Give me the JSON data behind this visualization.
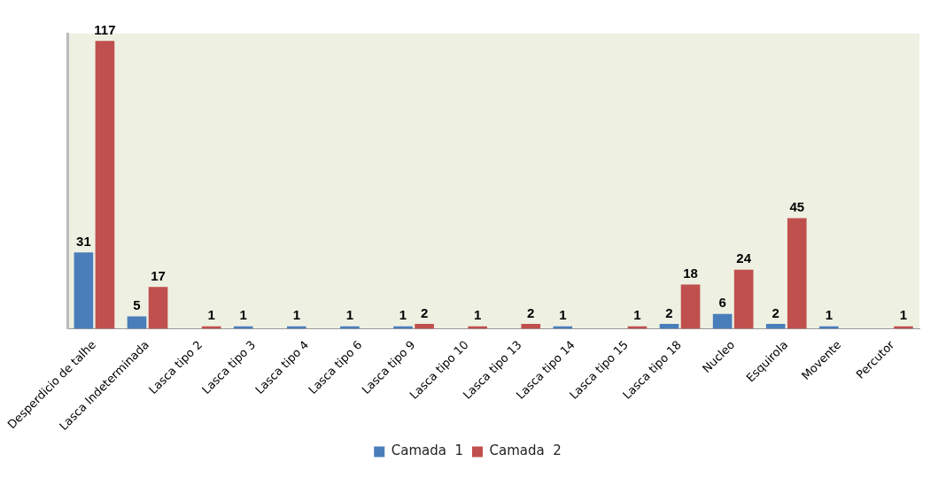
{
  "chart_data": {
    "type": "bar",
    "categories": [
      "Desperdicio de talhe",
      "Lasca Indeterminada",
      "Lasca tipo 2",
      "Lasca tipo 3",
      "Lasca tipo 4",
      "Lasca tipo 6",
      "Lasca tipo 9",
      "Lasca tipo 10",
      "Lasca tipo 13",
      "Lasca tipo 14",
      "Lasca tipo 15",
      "Lasca tipo 18",
      "Nucleo",
      "Esquirola",
      "Movente",
      "Percutor"
    ],
    "series": [
      {
        "name": "Camada  1",
        "color": "#4a7ebb",
        "values": [
          31,
          5,
          null,
          1,
          1,
          1,
          1,
          null,
          null,
          1,
          null,
          2,
          6,
          2,
          1,
          null
        ]
      },
      {
        "name": "Camada  2",
        "color": "#c0504d",
        "values": [
          117,
          17,
          1,
          null,
          null,
          null,
          2,
          1,
          2,
          null,
          1,
          18,
          24,
          45,
          null,
          1
        ]
      }
    ],
    "data_labels": true,
    "legend": "bottom",
    "grid": false
  }
}
